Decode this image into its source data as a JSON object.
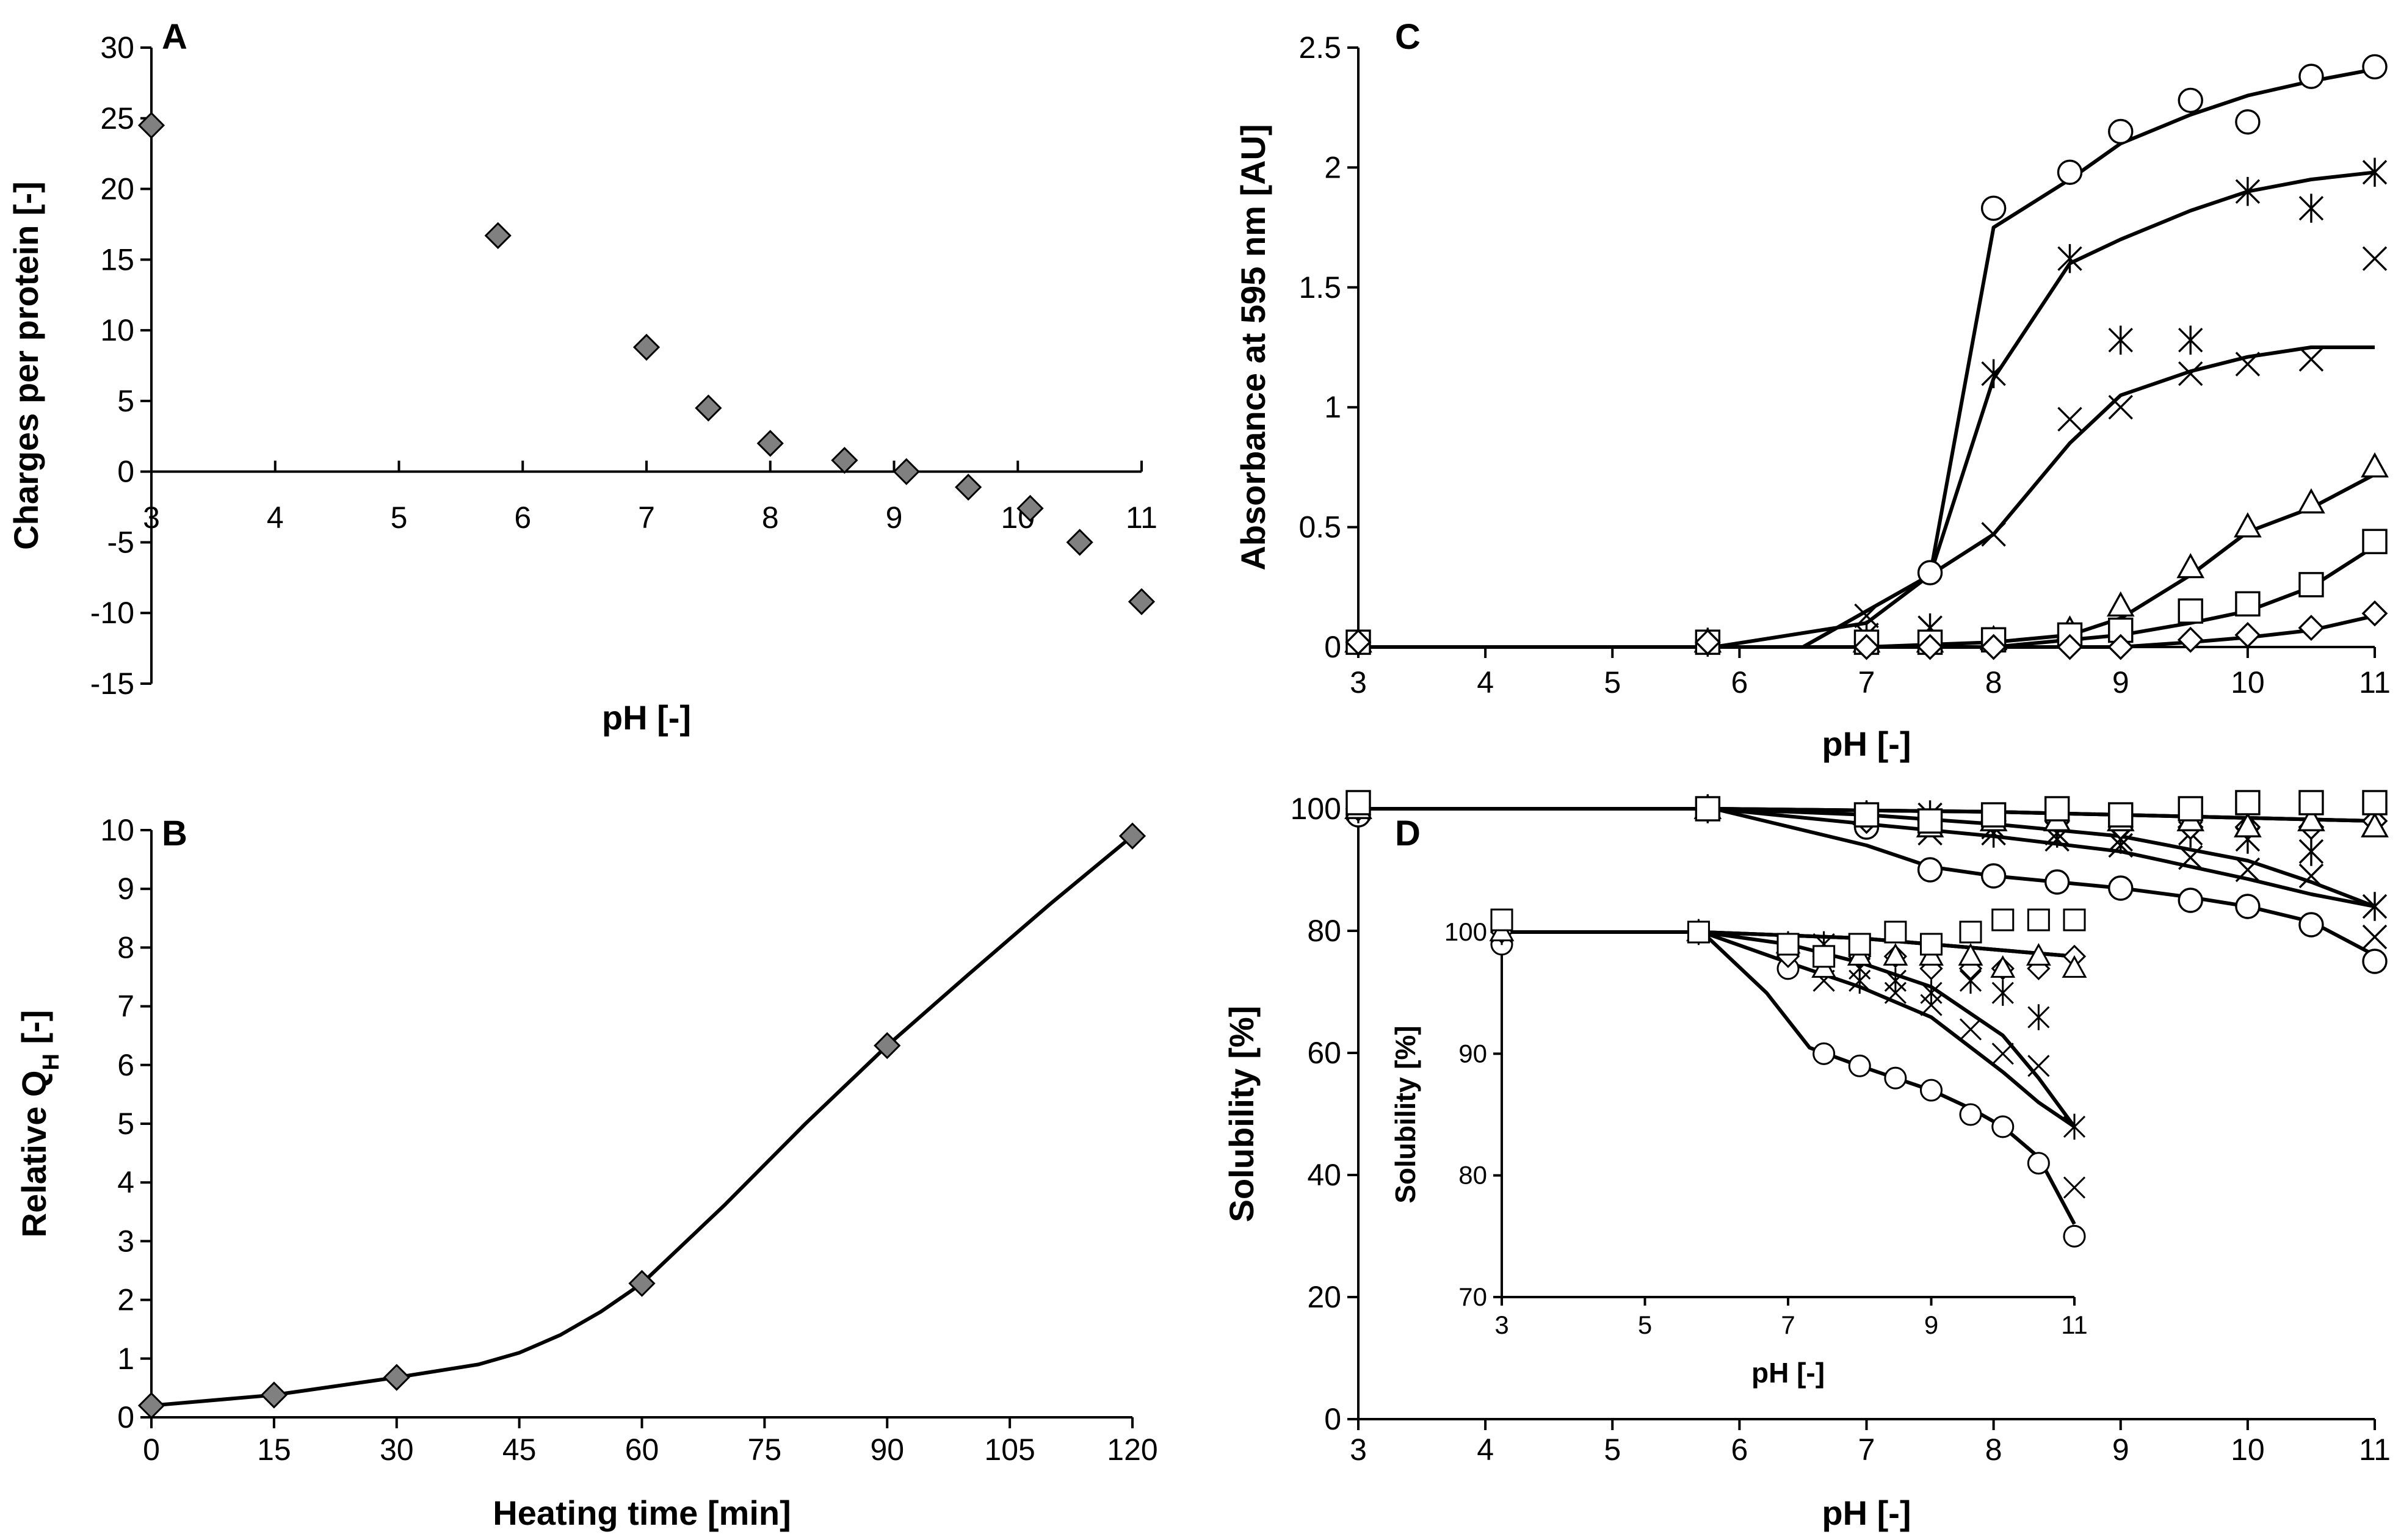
{
  "chart_data": [
    {
      "panel": "A",
      "type": "scatter",
      "xlabel": "pH [-]",
      "ylabel": "Charges per protein [-]",
      "xlim": [
        3,
        11
      ],
      "ylim": [
        -15,
        30
      ],
      "xticks": [
        3,
        4,
        5,
        6,
        7,
        8,
        9,
        10,
        11
      ],
      "yticks": [
        -15,
        -10,
        -5,
        0,
        5,
        10,
        15,
        20,
        25,
        30
      ],
      "marker_color": "#808080",
      "series": [
        {
          "name": "charges",
          "marker": "diamond",
          "x": [
            3,
            5.8,
            7,
            7.5,
            8,
            8.6,
            9.1,
            9.6,
            10.1,
            10.5,
            11
          ],
          "y": [
            24.5,
            16.7,
            8.8,
            4.5,
            2.0,
            0.8,
            0.0,
            -1.1,
            -2.6,
            -5.0,
            -9.2
          ]
        }
      ]
    },
    {
      "panel": "B",
      "type": "line",
      "xlabel": "Heating time [min]",
      "ylabel": "Relative Q",
      "ylabel_sub": "H",
      "ylabel_suffix": " [-]",
      "xlim": [
        0,
        120
      ],
      "ylim": [
        0,
        10
      ],
      "xticks": [
        0,
        15,
        30,
        45,
        60,
        75,
        90,
        105,
        120
      ],
      "yticks": [
        0,
        1,
        2,
        3,
        4,
        5,
        6,
        7,
        8,
        9,
        10
      ],
      "marker_color": "#808080",
      "series": [
        {
          "name": "relative QH",
          "marker": "diamond",
          "x": [
            0,
            15,
            30,
            60,
            90,
            120
          ],
          "y": [
            0.2,
            0.38,
            0.68,
            2.28,
            6.33,
            9.9
          ],
          "curve_x": [
            0,
            15,
            30,
            40,
            45,
            50,
            55,
            60,
            70,
            80,
            90,
            100,
            110,
            120
          ],
          "curve_y": [
            0.2,
            0.38,
            0.68,
            0.9,
            1.1,
            1.4,
            1.8,
            2.28,
            3.6,
            5.0,
            6.33,
            7.55,
            8.75,
            9.9
          ]
        }
      ]
    },
    {
      "panel": "C",
      "type": "line",
      "xlabel": "pH [-]",
      "ylabel": "Absorbance at 595 nm [AU]",
      "xlim": [
        3,
        11
      ],
      "ylim": [
        0,
        2.5
      ],
      "xticks": [
        3,
        4,
        5,
        6,
        7,
        8,
        9,
        10,
        11
      ],
      "yticks": [
        "0",
        "0.5",
        "1",
        "1.5",
        "2",
        "2.5"
      ],
      "ytick_values": [
        0,
        0.5,
        1,
        1.5,
        2,
        2.5
      ],
      "series": [
        {
          "name": "circle",
          "marker": "circle",
          "x": [
            3,
            5.75,
            7,
            7.5,
            8,
            8.6,
            9,
            9.55,
            10,
            10.5,
            11
          ],
          "y": [
            0.02,
            0.02,
            0.02,
            0.31,
            1.83,
            1.98,
            2.15,
            2.28,
            2.19,
            2.38,
            2.42
          ],
          "curve_x": [
            3,
            5.8,
            6.5,
            7.5,
            8.0,
            8.6,
            9.0,
            9.55,
            10.0,
            10.5,
            11.0
          ],
          "curve_y": [
            0,
            0,
            0,
            0.3,
            1.75,
            1.95,
            2.1,
            2.22,
            2.3,
            2.36,
            2.41
          ]
        },
        {
          "name": "asterisk",
          "marker": "asterisk",
          "x": [
            3,
            5.75,
            7,
            7.5,
            8,
            8.6,
            9,
            9.55,
            10,
            10.5,
            11
          ],
          "y": [
            0.02,
            0.02,
            0.05,
            0.08,
            1.14,
            1.62,
            1.28,
            1.28,
            1.9,
            1.83,
            1.98
          ],
          "curve_x": [
            3,
            5.8,
            6.5,
            7.5,
            8.0,
            8.6,
            9.0,
            9.55,
            10.0,
            10.5,
            11.0
          ],
          "curve_y": [
            0,
            0,
            0,
            0.3,
            1.12,
            1.6,
            1.7,
            1.82,
            1.9,
            1.95,
            1.98
          ]
        },
        {
          "name": "cross",
          "marker": "cross",
          "x": [
            3,
            5.75,
            7,
            7.5,
            8,
            8.6,
            9,
            9.55,
            10,
            10.5,
            11
          ],
          "y": [
            0.02,
            0.02,
            0.13,
            0.08,
            0.47,
            0.95,
            1.0,
            1.14,
            1.18,
            1.2,
            1.62
          ],
          "curve_x": [
            3,
            5.8,
            7.0,
            7.5,
            8.0,
            8.6,
            9.0,
            9.55,
            10.0,
            10.5,
            11.0
          ],
          "curve_y": [
            0,
            0,
            0.1,
            0.3,
            0.47,
            0.85,
            1.05,
            1.15,
            1.21,
            1.25,
            1.25
          ]
        },
        {
          "name": "triangle",
          "marker": "triangle",
          "x": [
            3,
            5.75,
            7,
            7.5,
            8,
            8.6,
            9,
            9.55,
            10,
            10.5,
            11
          ],
          "y": [
            0.02,
            0.02,
            0.02,
            0.02,
            0.03,
            0.07,
            0.17,
            0.33,
            0.5,
            0.6,
            0.75
          ],
          "curve_x": [
            3,
            5.8,
            7.0,
            8.0,
            8.6,
            9.0,
            9.55,
            10.0,
            10.5,
            11.0
          ],
          "curve_y": [
            0,
            0,
            0,
            0.02,
            0.05,
            0.12,
            0.3,
            0.48,
            0.58,
            0.72
          ]
        },
        {
          "name": "square",
          "marker": "square",
          "x": [
            3,
            5.75,
            7,
            7.5,
            8,
            8.6,
            9,
            9.55,
            10,
            10.5,
            11
          ],
          "y": [
            0.02,
            0.02,
            0.02,
            0.02,
            0.03,
            0.05,
            0.07,
            0.15,
            0.18,
            0.26,
            0.44
          ],
          "curve_x": [
            3,
            5.8,
            8.0,
            9.0,
            9.55,
            10.0,
            10.5,
            11.0
          ],
          "curve_y": [
            0,
            0,
            0,
            0.05,
            0.1,
            0.15,
            0.25,
            0.42
          ]
        },
        {
          "name": "diamond",
          "marker": "diamond_open",
          "x": [
            3,
            5.75,
            7,
            7.5,
            8,
            8.6,
            9,
            9.55,
            10,
            10.5,
            11
          ],
          "y": [
            0.02,
            0.02,
            0.0,
            0.0,
            0.0,
            0.0,
            0.0,
            0.03,
            0.05,
            0.08,
            0.14
          ],
          "curve_x": [
            3,
            5.8,
            9.0,
            9.55,
            10.0,
            10.5,
            11.0
          ],
          "curve_y": [
            0,
            0,
            0,
            0.02,
            0.04,
            0.07,
            0.13
          ]
        }
      ]
    },
    {
      "panel": "D",
      "type": "line",
      "xlabel": "pH [-]",
      "ylabel": "Solubility [%]",
      "xlim": [
        3,
        11
      ],
      "ylim": [
        0,
        100
      ],
      "xticks": [
        3,
        4,
        5,
        6,
        7,
        8,
        9,
        10,
        11
      ],
      "yticks": [
        0,
        20,
        40,
        60,
        80,
        100
      ],
      "series": [
        {
          "name": "circle",
          "marker": "circle",
          "x": [
            3,
            5.75,
            7,
            7.5,
            8,
            8.5,
            9,
            9.55,
            10,
            10.5,
            11
          ],
          "y": [
            99,
            100,
            97,
            90,
            89,
            88,
            87,
            85,
            84,
            81,
            75
          ],
          "curve_x": [
            3,
            5.8,
            7.0,
            7.5,
            8.0,
            8.5,
            9.0,
            9.55,
            10.0,
            10.5,
            11.0
          ],
          "curve_y": [
            100,
            100,
            94,
            90.5,
            89,
            88,
            87,
            85.5,
            84,
            81.5,
            76
          ]
        },
        {
          "name": "cross",
          "marker": "cross",
          "x": [
            3,
            5.75,
            7,
            7.5,
            8,
            8.5,
            9,
            9.55,
            10,
            10.5,
            11
          ],
          "y": [
            100,
            100,
            99,
            96,
            97,
            95,
            94,
            92,
            90,
            89,
            79
          ],
          "curve_x": [
            3,
            5.8,
            7.0,
            8.0,
            9.0,
            10.0,
            10.5,
            11.0
          ],
          "curve_y": [
            100,
            100,
            97.5,
            95.5,
            93,
            88.5,
            86,
            84
          ]
        },
        {
          "name": "asterisk",
          "marker": "asterisk",
          "x": [
            3,
            5.75,
            7,
            7.5,
            8,
            8.5,
            9,
            9.55,
            10,
            10.5,
            11
          ],
          "y": [
            100,
            100,
            99,
            99,
            96,
            96,
            95,
            96,
            95,
            93,
            84
          ],
          "curve_x": [
            3,
            5.8,
            7.0,
            8.0,
            9.0,
            10.0,
            10.5,
            11.0
          ],
          "curve_y": [
            100,
            100,
            99,
            97.5,
            95.5,
            91.5,
            88,
            84
          ]
        },
        {
          "name": "diamond",
          "marker": "diamond_open",
          "x": [
            3,
            5.75,
            7,
            7.5,
            8,
            8.5,
            9,
            9.55,
            10,
            10.5,
            11
          ],
          "y": [
            100,
            100,
            98,
            98,
            98,
            98,
            97,
            97,
            97,
            97,
            98
          ],
          "curve_x": [
            3,
            5.8,
            8.0,
            9.0,
            10.0,
            11.0
          ],
          "curve_y": [
            100,
            100,
            99.5,
            99,
            98.5,
            98
          ]
        },
        {
          "name": "triangle",
          "marker": "triangle",
          "x": [
            3,
            5.75,
            7,
            7.5,
            8,
            8.5,
            9,
            9.55,
            10,
            10.5,
            11
          ],
          "y": [
            100,
            100,
            99,
            97,
            98,
            98,
            98,
            98,
            97,
            98,
            97
          ],
          "curve_x": [
            3,
            5.8,
            8.0,
            9.0,
            10.0,
            11.0
          ],
          "curve_y": [
            100,
            100,
            99.5,
            99,
            98.5,
            98
          ]
        },
        {
          "name": "square",
          "marker": "square",
          "x": [
            3,
            5.75,
            7,
            7.5,
            8,
            8.5,
            9,
            9.55,
            10,
            10.5,
            11
          ],
          "y": [
            101,
            100,
            99,
            98,
            99,
            100,
            99,
            100,
            101,
            101,
            101
          ],
          "curve_x": [
            3,
            5.8,
            8.0,
            9.0,
            10.0,
            11.0
          ],
          "curve_y": [
            100,
            100,
            99.5,
            99,
            98.5,
            98
          ]
        }
      ],
      "inset": {
        "xlabel": "pH [-]",
        "ylabel": "Solubility [%]",
        "xlim": [
          3,
          11
        ],
        "ylim": [
          70,
          100
        ],
        "xticks": [
          3,
          5,
          7,
          9,
          11
        ],
        "yticks": [
          70,
          80,
          90,
          100
        ],
        "series": [
          {
            "name": "circle",
            "marker": "circle",
            "x": [
              3,
              5.75,
              7,
              7.5,
              8,
              8.5,
              9,
              9.55,
              10,
              10.5,
              11
            ],
            "y": [
              99,
              100,
              97,
              90,
              89,
              88,
              87,
              85,
              84,
              81,
              75
            ],
            "curve_x": [
              3,
              5.8,
              6.7,
              7.3,
              8.0,
              8.5,
              9.0,
              9.55,
              10.0,
              10.5,
              11.0
            ],
            "curve_y": [
              100,
              100,
              95,
              90.5,
              89,
              88,
              87,
              85.5,
              84,
              81.5,
              76
            ]
          },
          {
            "name": "cross",
            "marker": "cross",
            "x": [
              3,
              5.75,
              7,
              7.5,
              8,
              8.5,
              9,
              9.55,
              10,
              10.5,
              11
            ],
            "y": [
              100,
              100,
              99,
              96,
              97,
              95,
              94,
              92,
              90,
              89,
              79
            ],
            "curve_x": [
              3,
              5.8,
              7.0,
              8.0,
              9.0,
              10.0,
              10.5,
              11.0
            ],
            "curve_y": [
              100,
              100,
              97.5,
              95.5,
              93,
              88.5,
              86,
              84
            ]
          },
          {
            "name": "asterisk",
            "marker": "asterisk",
            "x": [
              3,
              5.75,
              7,
              7.5,
              8,
              8.5,
              9,
              9.55,
              10,
              10.5,
              11
            ],
            "y": [
              100,
              100,
              99,
              99,
              96,
              96,
              95,
              96,
              95,
              93,
              84
            ],
            "curve_x": [
              3,
              5.8,
              7.0,
              8.0,
              9.0,
              10.0,
              10.5,
              11.0
            ],
            "curve_y": [
              100,
              100,
              99,
              97.5,
              95.5,
              91.5,
              88,
              84
            ]
          },
          {
            "name": "diamond",
            "marker": "diamond_open",
            "x": [
              3,
              5.75,
              7,
              7.5,
              8,
              8.5,
              9,
              9.55,
              10,
              10.5,
              11
            ],
            "y": [
              100,
              100,
              98,
              98,
              98,
              98,
              97,
              97,
              97,
              97,
              98
            ],
            "curve_x": [
              3,
              5.8,
              8.0,
              9.0,
              10.0,
              11.0
            ],
            "curve_y": [
              100,
              100,
              99.5,
              99,
              98.5,
              98
            ]
          },
          {
            "name": "triangle",
            "marker": "triangle",
            "x": [
              3,
              5.75,
              7,
              7.5,
              8,
              8.5,
              9,
              9.55,
              10,
              10.5,
              11
            ],
            "y": [
              100,
              100,
              99,
              97,
              98,
              98,
              98,
              98,
              97,
              98,
              97
            ],
            "curve_x": [
              3,
              5.8,
              8.0,
              9.0,
              10.0,
              11.0
            ],
            "curve_y": [
              100,
              100,
              99.5,
              99,
              98.5,
              98
            ]
          },
          {
            "name": "square",
            "marker": "square",
            "x": [
              3,
              5.75,
              7,
              7.5,
              8,
              8.5,
              9,
              9.55,
              10,
              10.5,
              11
            ],
            "y": [
              101,
              100,
              99,
              98,
              99,
              100,
              99,
              100,
              101,
              101,
              101
            ],
            "curve_x": [
              3,
              5.8,
              8.0,
              9.0,
              10.0,
              11.0
            ],
            "curve_y": [
              100,
              100,
              99.5,
              99,
              98.5,
              98
            ]
          }
        ]
      }
    }
  ]
}
